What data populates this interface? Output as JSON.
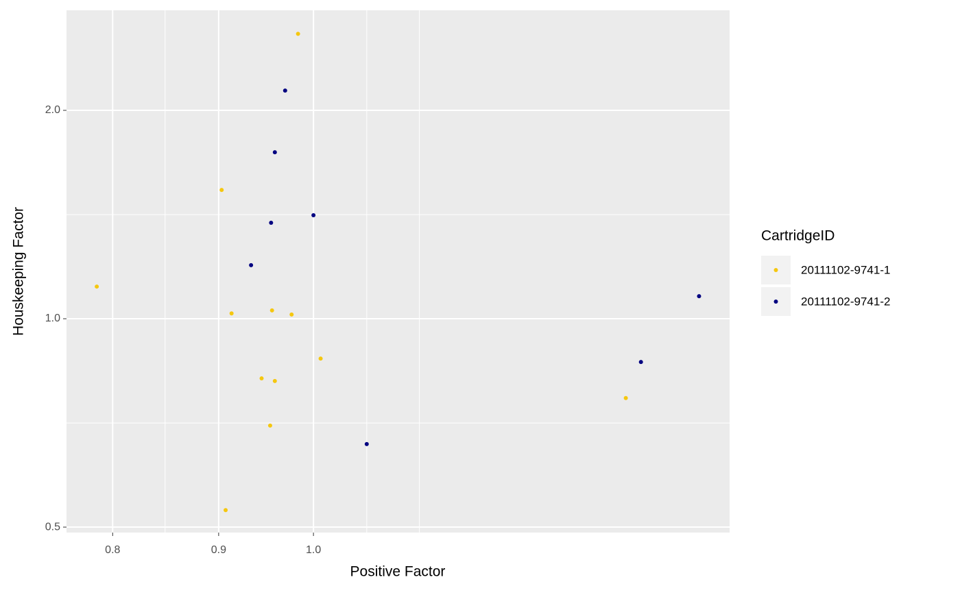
{
  "chart_data": {
    "type": "scatter",
    "x_label": "Positive Factor",
    "y_label": "Houskeeping Factor",
    "legend_title": "CartridgeID",
    "legend_position": "right",
    "xlog": true,
    "ylog": true,
    "grid": true,
    "xlim": [
      0.76,
      1.588
    ],
    "ylim": [
      0.491,
      2.79
    ],
    "xticks": [
      0.8,
      0.9,
      {
        "value": 1,
        "label": "1.0"
      }
    ],
    "yticks": [
      0.5,
      {
        "value": 1,
        "label": "1.0"
      },
      {
        "value": 2,
        "label": "2.0"
      }
    ],
    "x_minor_ticks": [
      0.848,
      1.061,
      1.125
    ],
    "y_minor_ticks": [
      0.707,
      1.414
    ],
    "series": [
      {
        "name": "20111102-9741-1",
        "color": "#F5C710",
        "x": [
          0.983,
          0.903,
          0.786,
          0.913,
          0.955,
          0.976,
          1.008,
          0.944,
          0.958,
          0.953,
          0.907,
          1.415
        ],
        "values": [
          2.58,
          1.535,
          1.113,
          1.018,
          1.028,
          1.014,
          0.876,
          0.82,
          0.813,
          0.701,
          0.529,
          0.768
        ]
      },
      {
        "name": "20111102-9741-2",
        "color": "#000080",
        "x": [
          0.969,
          0.958,
          1.0,
          0.954,
          0.933,
          1.061,
          1.439,
          1.535
        ],
        "values": [
          2.136,
          1.74,
          1.411,
          1.376,
          1.195,
          0.659,
          0.866,
          1.078
        ]
      }
    ]
  }
}
